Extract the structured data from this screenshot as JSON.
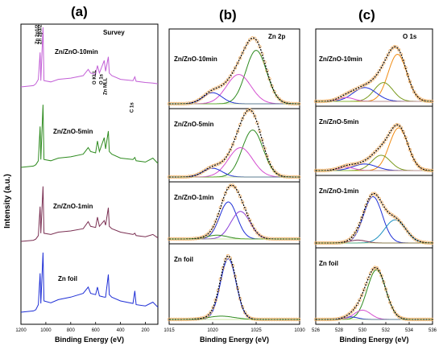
{
  "chart_data": [
    {
      "type": "line",
      "panel_label": "(a)",
      "title": "Survey",
      "xlabel": "Binding Energy (eV)",
      "ylabel": "Intensity (a.u.)",
      "xlim": [
        1200,
        100
      ],
      "x_reversed": true,
      "x_ticks": [
        1200,
        1000,
        800,
        600,
        400,
        200
      ],
      "series": [
        {
          "name": "Zn/ZnO-10min",
          "color": "#c25ed6",
          "points": [
            [
              1200,
              0.0
            ],
            [
              1100,
              0.02
            ],
            [
              1080,
              0.05
            ],
            [
              1060,
              0.12
            ],
            [
              1046,
              0.55
            ],
            [
              1040,
              0.1
            ],
            [
              1023,
              0.95
            ],
            [
              1015,
              0.1
            ],
            [
              960,
              0.08
            ],
            [
              900,
              0.12
            ],
            [
              800,
              0.14
            ],
            [
              700,
              0.18
            ],
            [
              660,
              0.28
            ],
            [
              640,
              0.22
            ],
            [
              600,
              0.2
            ],
            [
              585,
              0.34
            ],
            [
              570,
              0.22
            ],
            [
              531,
              0.42
            ],
            [
              520,
              0.25
            ],
            [
              498,
              0.48
            ],
            [
              490,
              0.22
            ],
            [
              470,
              0.18
            ],
            [
              400,
              0.12
            ],
            [
              300,
              0.1
            ],
            [
              285,
              0.16
            ],
            [
              275,
              0.09
            ],
            [
              200,
              0.07
            ],
            [
              140,
              0.06
            ],
            [
              100,
              0.05
            ]
          ]
        },
        {
          "name": "Zn/ZnO-5min",
          "color": "#2e8b1f",
          "points": [
            [
              1200,
              0.0
            ],
            [
              1100,
              0.02
            ],
            [
              1080,
              0.04
            ],
            [
              1060,
              0.1
            ],
            [
              1046,
              0.62
            ],
            [
              1040,
              0.12
            ],
            [
              1023,
              0.95
            ],
            [
              1015,
              0.12
            ],
            [
              960,
              0.1
            ],
            [
              900,
              0.14
            ],
            [
              800,
              0.16
            ],
            [
              700,
              0.2
            ],
            [
              660,
              0.3
            ],
            [
              640,
              0.24
            ],
            [
              600,
              0.22
            ],
            [
              585,
              0.4
            ],
            [
              570,
              0.24
            ],
            [
              531,
              0.45
            ],
            [
              520,
              0.28
            ],
            [
              498,
              0.55
            ],
            [
              490,
              0.24
            ],
            [
              470,
              0.2
            ],
            [
              400,
              0.14
            ],
            [
              300,
              0.12
            ],
            [
              285,
              0.15
            ],
            [
              275,
              0.1
            ],
            [
              200,
              0.08
            ],
            [
              140,
              0.14
            ],
            [
              100,
              0.06
            ]
          ]
        },
        {
          "name": "Zn/ZnO-1min",
          "color": "#7a2f52",
          "points": [
            [
              1200,
              0.0
            ],
            [
              1100,
              0.02
            ],
            [
              1080,
              0.04
            ],
            [
              1060,
              0.1
            ],
            [
              1046,
              0.6
            ],
            [
              1040,
              0.14
            ],
            [
              1023,
              0.95
            ],
            [
              1015,
              0.14
            ],
            [
              960,
              0.12
            ],
            [
              900,
              0.16
            ],
            [
              800,
              0.18
            ],
            [
              700,
              0.22
            ],
            [
              660,
              0.34
            ],
            [
              640,
              0.26
            ],
            [
              600,
              0.24
            ],
            [
              585,
              0.42
            ],
            [
              570,
              0.26
            ],
            [
              531,
              0.36
            ],
            [
              520,
              0.28
            ],
            [
              498,
              0.58
            ],
            [
              490,
              0.26
            ],
            [
              470,
              0.22
            ],
            [
              400,
              0.16
            ],
            [
              300,
              0.12
            ],
            [
              285,
              0.14
            ],
            [
              275,
              0.1
            ],
            [
              200,
              0.08
            ],
            [
              140,
              0.12
            ],
            [
              100,
              0.06
            ]
          ]
        },
        {
          "name": "Zn foil",
          "color": "#1f2fd6",
          "points": [
            [
              1200,
              0.0
            ],
            [
              1100,
              0.02
            ],
            [
              1080,
              0.04
            ],
            [
              1060,
              0.12
            ],
            [
              1046,
              0.62
            ],
            [
              1040,
              0.14
            ],
            [
              1023,
              0.95
            ],
            [
              1015,
              0.18
            ],
            [
              960,
              0.15
            ],
            [
              900,
              0.2
            ],
            [
              800,
              0.24
            ],
            [
              700,
              0.3
            ],
            [
              660,
              0.4
            ],
            [
              640,
              0.3
            ],
            [
              600,
              0.28
            ],
            [
              585,
              0.4
            ],
            [
              570,
              0.26
            ],
            [
              531,
              0.24
            ],
            [
              520,
              0.24
            ],
            [
              498,
              0.6
            ],
            [
              490,
              0.28
            ],
            [
              470,
              0.24
            ],
            [
              400,
              0.18
            ],
            [
              300,
              0.14
            ],
            [
              285,
              0.34
            ],
            [
              275,
              0.12
            ],
            [
              200,
              0.1
            ],
            [
              140,
              0.16
            ],
            [
              100,
              0.08
            ]
          ]
        }
      ],
      "peak_labels": [
        "Zn 2p1/2",
        "Zn 2p3/2",
        "O KLL",
        "O 1s",
        "Zn MLL",
        "C 1s"
      ]
    },
    {
      "type": "line",
      "panel_label": "(b)",
      "title": "Zn 2p",
      "xlabel": "Binding Energy (eV)",
      "xlim": [
        1015,
        1030
      ],
      "x_ticks": [
        1015,
        1020,
        1025,
        1030
      ],
      "rows": [
        {
          "name": "Zn/ZnO-10min",
          "peaks": [
            {
              "center": 1025.0,
              "width": 1.2,
              "height": 0.82,
              "color": "#2e8b1f"
            },
            {
              "center": 1023.0,
              "width": 1.4,
              "height": 0.45,
              "color": "#d44fd0"
            },
            {
              "center": 1020.0,
              "width": 1.1,
              "height": 0.17,
              "color": "#1f2fd6"
            }
          ]
        },
        {
          "name": "Zn/ZnO-5min",
          "peaks": [
            {
              "center": 1024.6,
              "width": 1.2,
              "height": 0.8,
              "color": "#2e8b1f"
            },
            {
              "center": 1023.2,
              "width": 1.4,
              "height": 0.5,
              "color": "#d44fd0"
            },
            {
              "center": 1020.0,
              "width": 1.1,
              "height": 0.15,
              "color": "#1f2fd6"
            }
          ]
        },
        {
          "name": "Zn/ZnO-1min",
          "peaks": [
            {
              "center": 1021.8,
              "width": 1.0,
              "height": 0.78,
              "color": "#1f2fd6"
            },
            {
              "center": 1023.2,
              "width": 1.1,
              "height": 0.58,
              "color": "#8a3fd8"
            },
            {
              "center": 1020.5,
              "width": 1.2,
              "height": 0.08,
              "color": "#2e8b1f"
            }
          ]
        },
        {
          "name": "Zn foil",
          "peaks": [
            {
              "center": 1021.8,
              "width": 0.9,
              "height": 0.92,
              "color": "#1f2fd6"
            },
            {
              "center": 1021.0,
              "width": 1.5,
              "height": 0.05,
              "color": "#2e8b1f"
            }
          ]
        }
      ]
    },
    {
      "type": "line",
      "panel_label": "(c)",
      "title": "O 1s",
      "xlabel": "Binding Energy (eV)",
      "xlim": [
        526,
        536
      ],
      "x_ticks": [
        526,
        528,
        530,
        532,
        534,
        536
      ],
      "rows": [
        {
          "name": "Zn/ZnO-10min",
          "peaks": [
            {
              "center": 533.0,
              "width": 0.8,
              "height": 0.75,
              "color": "#f08c14"
            },
            {
              "center": 531.8,
              "width": 0.8,
              "height": 0.3,
              "color": "#7a9a1e"
            },
            {
              "center": 530.2,
              "width": 1.0,
              "height": 0.22,
              "color": "#1f2fd6"
            },
            {
              "center": 528.6,
              "width": 0.7,
              "height": 0.06,
              "color": "#d44fd0"
            }
          ]
        },
        {
          "name": "Zn/ZnO-5min",
          "peaks": [
            {
              "center": 533.1,
              "width": 0.8,
              "height": 0.78,
              "color": "#f08c14"
            },
            {
              "center": 531.6,
              "width": 0.8,
              "height": 0.28,
              "color": "#7a9a1e"
            },
            {
              "center": 530.2,
              "width": 1.0,
              "height": 0.12,
              "color": "#1f2fd6"
            },
            {
              "center": 528.6,
              "width": 0.7,
              "height": 0.06,
              "color": "#d44fd0"
            }
          ]
        },
        {
          "name": "Zn/ZnO-1min",
          "peaks": [
            {
              "center": 530.9,
              "width": 0.8,
              "height": 0.8,
              "color": "#1f2fd6"
            },
            {
              "center": 532.8,
              "width": 0.9,
              "height": 0.4,
              "color": "#1b8fbf"
            },
            {
              "center": 529.6,
              "width": 0.7,
              "height": 0.05,
              "color": "#7a2f52"
            }
          ]
        },
        {
          "name": "Zn foil",
          "peaks": [
            {
              "center": 531.2,
              "width": 0.8,
              "height": 0.8,
              "color": "#2e8b1f"
            },
            {
              "center": 530.0,
              "width": 0.7,
              "height": 0.15,
              "color": "#d44fd0"
            },
            {
              "center": 529.0,
              "width": 0.6,
              "height": 0.04,
              "color": "#1f2fd6"
            }
          ]
        }
      ]
    }
  ]
}
